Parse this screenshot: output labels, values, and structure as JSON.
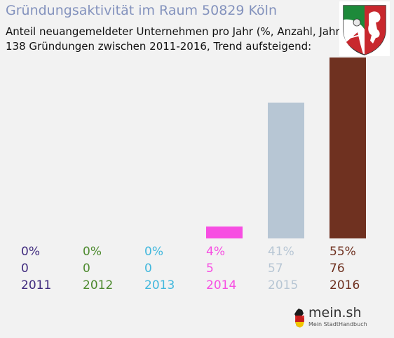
{
  "header": {
    "title": "Gründungsaktivität im Raum 50829 Köln",
    "subtitle_line1": "Anteil neuangemeldeter Unternehmen pro Jahr (%, Anzahl, Jahr)",
    "subtitle_line2": "138 Gründungen zwischen 2011-2016, Trend aufsteigend:"
  },
  "logo": {
    "main": "mein.sh",
    "sub": "Mein StadtHandbuch"
  },
  "chart_data": {
    "type": "bar",
    "categories": [
      "2011",
      "2012",
      "2013",
      "2014",
      "2015",
      "2016"
    ],
    "values": [
      0,
      0,
      0,
      5,
      57,
      76
    ],
    "percent_labels": [
      "0%",
      "0%",
      "0%",
      "4%",
      "41%",
      "55%"
    ],
    "count_labels": [
      "0",
      "0",
      "0",
      "5",
      "57",
      "76"
    ],
    "colors": [
      "#3f2a7e",
      "#4d8a2e",
      "#42b8dd",
      "#f74ee2",
      "#b7c6d4",
      "#6f3120"
    ],
    "total": 138,
    "title": "Gründungsaktivität im Raum 50829 Köln",
    "grid": false,
    "legend": "none"
  }
}
